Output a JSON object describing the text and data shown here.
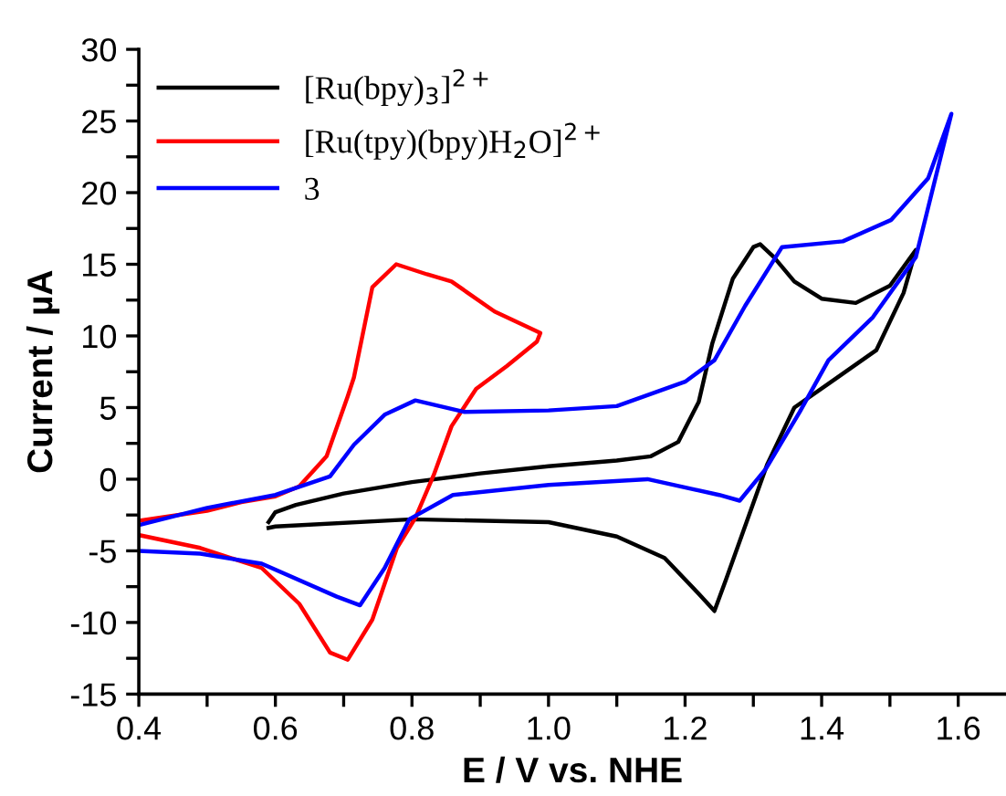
{
  "chart_data": {
    "type": "line",
    "xlabel": "E / V vs. NHE",
    "ylabel": "Current / µA",
    "xlim": [
      0.4,
      1.67
    ],
    "ylim": [
      -15,
      30
    ],
    "xticks": [
      0.4,
      {
        "value": 0.5,
        "label": null
      },
      0.6,
      {
        "value": 0.7,
        "label": null
      },
      0.8,
      {
        "value": 0.9,
        "label": null
      },
      {
        "value": 1.0,
        "label": "1.0"
      },
      {
        "value": 1.1,
        "label": null
      },
      1.2,
      {
        "value": 1.3,
        "label": null
      },
      1.4,
      {
        "value": 1.5,
        "label": null
      },
      1.6
    ],
    "yticks": [
      -15,
      {
        "value": -12.5,
        "label": null
      },
      -10,
      {
        "value": -7.5,
        "label": null
      },
      -5,
      {
        "value": -2.5,
        "label": null
      },
      0,
      {
        "value": 2.5,
        "label": null
      },
      5,
      {
        "value": 7.5,
        "label": null
      },
      10,
      {
        "value": 12.5,
        "label": null
      },
      15,
      {
        "value": 17.5,
        "label": null
      },
      20,
      {
        "value": 22.5,
        "label": null
      },
      25,
      {
        "value": 27.5,
        "label": null
      },
      30
    ],
    "legend": "top left",
    "grid": false,
    "marker": "none",
    "line_style": "solid",
    "series": [
      {
        "name": "[Ru(bpy)$_{3}$]$^{2+}$",
        "color": "#000000",
        "x": [
          0.59,
          0.6,
          0.63,
          0.7,
          0.8,
          0.9,
          1.0,
          1.1,
          1.15,
          1.19,
          1.22,
          1.24,
          1.27,
          1.3,
          1.31,
          1.33,
          1.36,
          1.4,
          1.45,
          1.5,
          1.538,
          1.52,
          1.48,
          1.42,
          1.36,
          1.32,
          1.29,
          1.26,
          1.243,
          1.22,
          1.17,
          1.1,
          1.0,
          0.8,
          0.6,
          0.59
        ],
        "values": [
          -3.0,
          -2.3,
          -1.8,
          -1.0,
          -0.2,
          0.4,
          0.9,
          1.3,
          1.6,
          2.6,
          5.4,
          9.5,
          14.0,
          16.2,
          16.4,
          15.5,
          13.8,
          12.6,
          12.3,
          13.5,
          16.0,
          13.0,
          9.0,
          7.0,
          5.0,
          1.0,
          -3.0,
          -7.0,
          -9.2,
          -8.0,
          -5.5,
          -4.0,
          -3.0,
          -2.8,
          -3.3,
          -3.4
        ]
      },
      {
        "name": "[Ru(tpy)(bpy)H$_{2}$O]$^{2+}$",
        "color": "#ff0000",
        "x": [
          0.4,
          0.5,
          0.55,
          0.6,
          0.635,
          0.675,
          0.706,
          0.715,
          0.742,
          0.777,
          0.822,
          0.858,
          0.921,
          0.988,
          0.983,
          0.939,
          0.894,
          0.858,
          0.832,
          0.805,
          0.778,
          0.742,
          0.706,
          0.68,
          0.635,
          0.58,
          0.49,
          0.4
        ],
        "values": [
          -2.9,
          -2.2,
          -1.6,
          -1.2,
          -0.5,
          1.6,
          5.8,
          7.1,
          13.4,
          15.0,
          14.3,
          13.8,
          11.7,
          10.2,
          9.6,
          7.9,
          6.3,
          3.7,
          0.3,
          -2.7,
          -4.8,
          -9.8,
          -12.6,
          -12.1,
          -8.7,
          -6.2,
          -4.8,
          -3.9
        ]
      },
      {
        "name": "3",
        "color": "#0000ff",
        "x": [
          0.4,
          0.5,
          0.6,
          0.68,
          0.715,
          0.76,
          0.805,
          0.876,
          1.0,
          1.1,
          1.2,
          1.243,
          1.288,
          1.342,
          1.431,
          1.502,
          1.556,
          1.59,
          1.538,
          1.475,
          1.41,
          1.368,
          1.318,
          1.28,
          1.25,
          1.145,
          1.0,
          0.86,
          0.796,
          0.76,
          0.724,
          0.69,
          0.58,
          0.49,
          0.4
        ],
        "values": [
          -3.2,
          -2.0,
          -1.1,
          0.2,
          2.4,
          4.5,
          5.5,
          4.7,
          4.8,
          5.1,
          6.8,
          8.3,
          12.1,
          16.2,
          16.6,
          18.1,
          21.0,
          25.5,
          15.5,
          11.3,
          8.3,
          4.7,
          0.7,
          -1.5,
          -1.1,
          0.0,
          -0.4,
          -1.1,
          -2.8,
          -6.2,
          -8.8,
          -8.2,
          -5.9,
          -5.2,
          -5.0
        ]
      }
    ]
  }
}
